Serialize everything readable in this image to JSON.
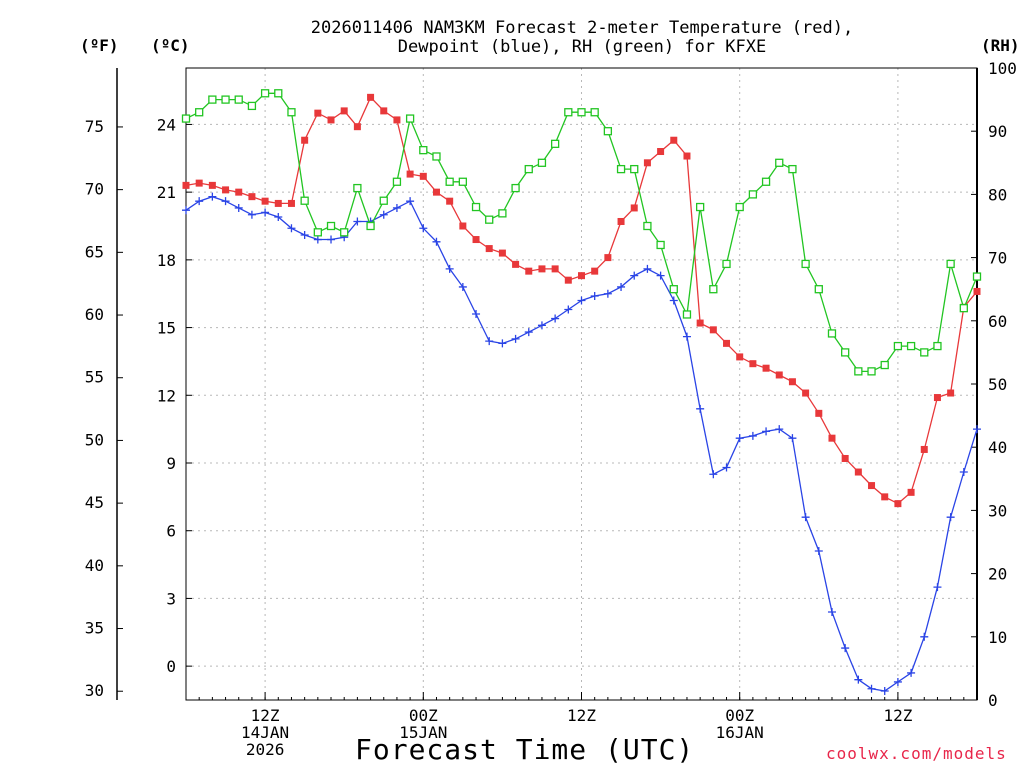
{
  "chart_data": {
    "type": "line",
    "title_line1": "2026011406 NAM3KM Forecast 2-meter Temperature (red),",
    "title_line2": "Dewpoint (blue), RH (green) for KFXE",
    "xlabel": "Forecast Time (UTC)",
    "credit": "coolwx.com/models",
    "unit_f": "(ºF)",
    "unit_c": "(ºC)",
    "unit_rh": "(RH)",
    "x_axis": {
      "unit": "forecast hour",
      "range": [
        0,
        60
      ],
      "ticks": [
        {
          "hour": 6,
          "lines": [
            "12Z",
            "14JAN",
            "2026"
          ]
        },
        {
          "hour": 18,
          "lines": [
            "00Z",
            "15JAN"
          ]
        },
        {
          "hour": 30,
          "lines": [
            "12Z"
          ]
        },
        {
          "hour": 42,
          "lines": [
            "00Z",
            "16JAN"
          ]
        },
        {
          "hour": 54,
          "lines": [
            "12Z"
          ]
        }
      ]
    },
    "y_axis_c": {
      "range": [
        -1.5,
        26.5
      ],
      "ticks": [
        "0",
        "3",
        "6",
        "9",
        "12",
        "15",
        "18",
        "21",
        "24"
      ]
    },
    "y_axis_f": {
      "ticks": [
        "30",
        "35",
        "40",
        "45",
        "50",
        "55",
        "60",
        "65",
        "70",
        "75"
      ]
    },
    "y_axis_rh": {
      "range": [
        0,
        100
      ],
      "ticks": [
        "0",
        "10",
        "20",
        "30",
        "40",
        "50",
        "60",
        "70",
        "80",
        "90",
        "100"
      ]
    },
    "series": [
      {
        "name": "Temperature",
        "color": "#e8383a",
        "marker": "square-filled",
        "axis": "celsius",
        "values": [
          21.3,
          21.4,
          21.3,
          21.1,
          21.0,
          20.8,
          20.6,
          20.5,
          20.5,
          23.3,
          24.5,
          24.2,
          24.6,
          23.9,
          25.2,
          24.6,
          24.2,
          21.8,
          21.7,
          21.0,
          20.6,
          19.5,
          18.9,
          18.5,
          18.3,
          17.8,
          17.5,
          17.6,
          17.6,
          17.1,
          17.3,
          17.5,
          18.1,
          19.7,
          20.3,
          22.3,
          22.8,
          23.3,
          22.6,
          15.2,
          14.9,
          14.3,
          13.7,
          13.4,
          13.2,
          12.9,
          12.6,
          12.1,
          11.2,
          10.1,
          9.2,
          8.6,
          8.0,
          7.5,
          7.2,
          7.7,
          9.6,
          11.9,
          12.1,
          15.9,
          16.6
        ]
      },
      {
        "name": "Dewpoint",
        "color": "#2a44e6",
        "marker": "plus",
        "axis": "celsius",
        "values": [
          20.2,
          20.6,
          20.8,
          20.6,
          20.3,
          20.0,
          20.1,
          19.9,
          19.4,
          19.1,
          18.9,
          18.9,
          19.0,
          19.7,
          19.7,
          20.0,
          20.3,
          20.6,
          19.4,
          18.8,
          17.6,
          16.8,
          15.6,
          14.4,
          14.3,
          14.5,
          14.8,
          15.1,
          15.4,
          15.8,
          16.2,
          16.4,
          16.5,
          16.8,
          17.3,
          17.6,
          17.3,
          16.2,
          14.6,
          11.4,
          8.5,
          8.8,
          10.1,
          10.2,
          10.4,
          10.5,
          10.1,
          6.6,
          5.1,
          2.4,
          0.8,
          -0.6,
          -1.0,
          -1.1,
          -0.7,
          -0.3,
          1.3,
          3.5,
          6.6,
          8.6,
          10.5
        ]
      },
      {
        "name": "RH",
        "color": "#22c522",
        "marker": "square-open",
        "axis": "rh",
        "values": [
          92,
          93,
          95,
          95,
          95,
          94,
          96,
          96,
          93,
          79,
          74,
          75,
          74,
          81,
          75,
          79,
          82,
          92,
          87,
          86,
          82,
          82,
          78,
          76,
          77,
          81,
          84,
          85,
          88,
          93,
          93,
          93,
          90,
          84,
          84,
          75,
          72,
          65,
          61,
          78,
          65,
          69,
          78,
          80,
          82,
          85,
          84,
          69,
          65,
          58,
          55,
          52,
          52,
          53,
          56,
          56,
          55,
          56,
          69,
          62,
          67
        ]
      }
    ]
  }
}
